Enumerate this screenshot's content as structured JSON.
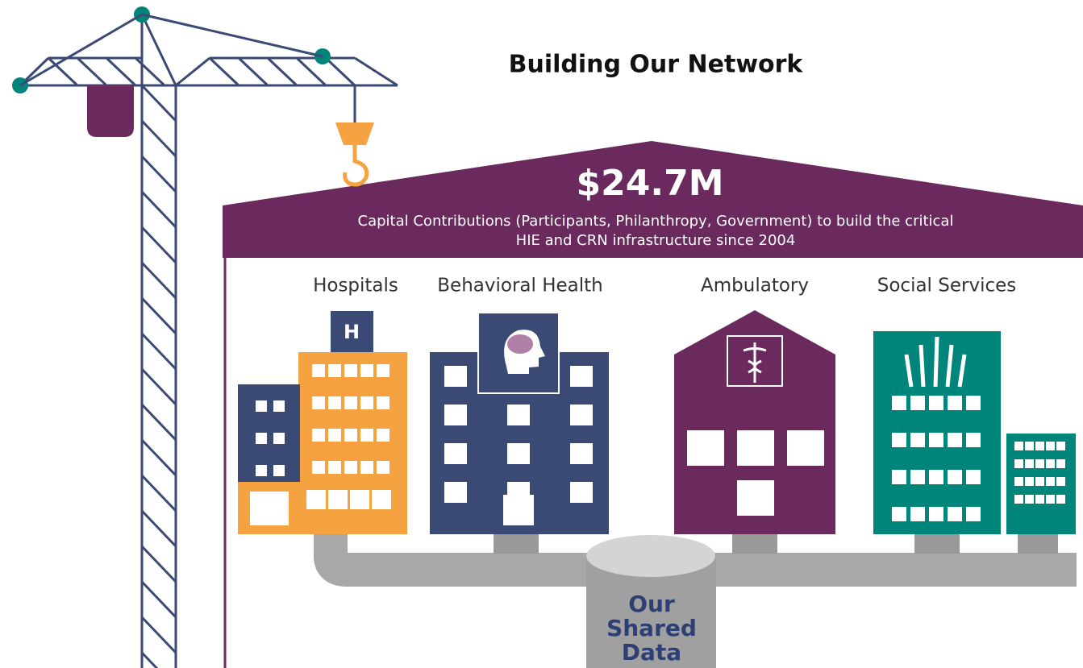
{
  "header": {
    "title": "Building Our Network"
  },
  "roof": {
    "amount": "$24.7M",
    "description": [
      "Capital Contributions (Participants, Philanthropy, Government) to build the critical",
      "HIE and CRN infrastructure since 2004"
    ]
  },
  "buildings": [
    {
      "label": "Hospitals",
      "sign": "H"
    },
    {
      "label": "Behavioral Health"
    },
    {
      "label": "Ambulatory"
    },
    {
      "label": "Social Services"
    }
  ],
  "data_store": {
    "lines": [
      "Our",
      "Shared",
      "Data"
    ]
  }
}
